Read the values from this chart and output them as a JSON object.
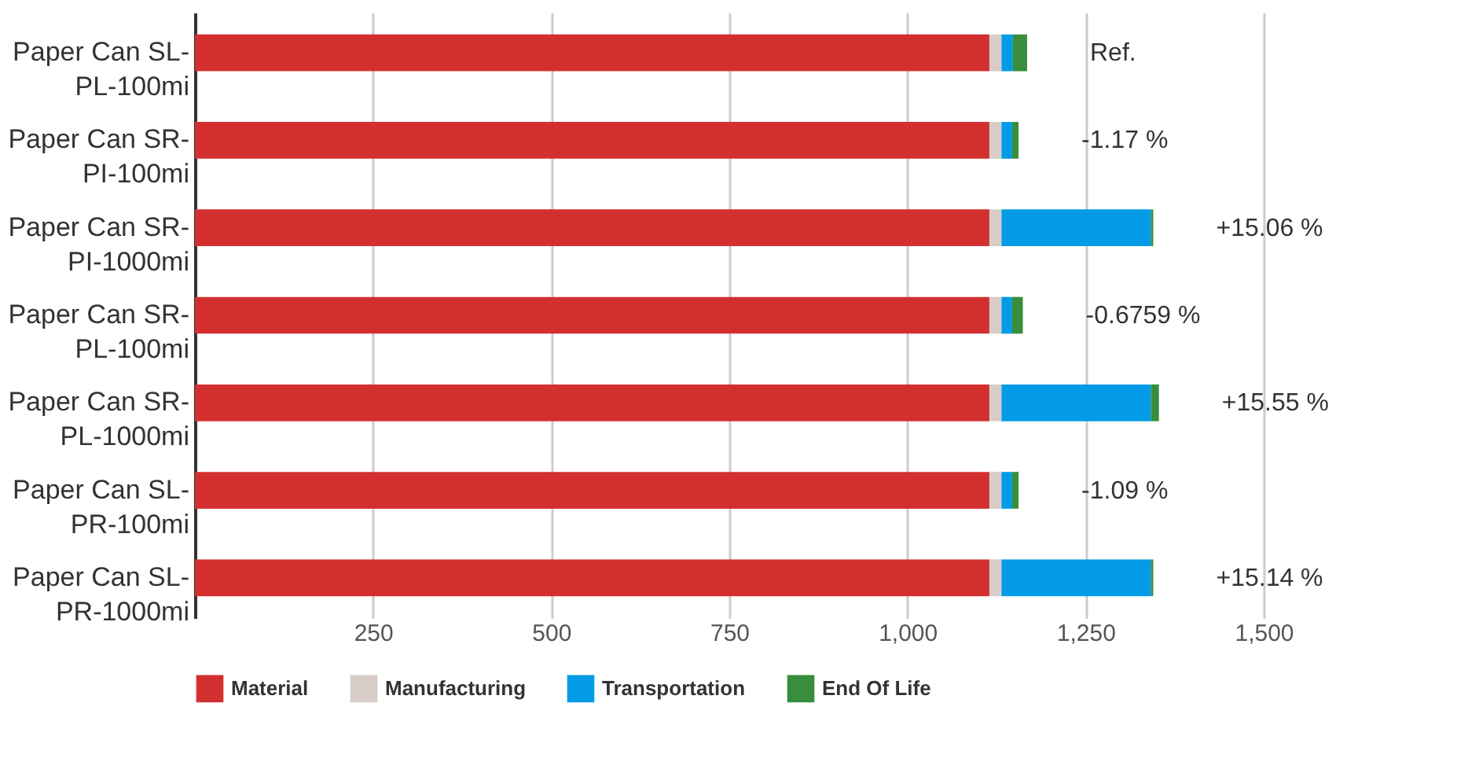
{
  "chart_data": {
    "type": "bar",
    "orientation": "horizontal",
    "stacked": true,
    "categories": [
      "Paper Can SL-PL-100mi",
      "Paper Can SR-PI-100mi",
      "Paper Can SR-PI-1000mi",
      "Paper Can SR-PL-100mi",
      "Paper Can SR-PL-1000mi",
      "Paper Can SL-PR-100mi",
      "Paper Can SL-PR-1000mi"
    ],
    "series": [
      {
        "name": "Material",
        "color": "#d32f2f",
        "values": [
          1115,
          1115,
          1115,
          1115,
          1115,
          1115,
          1115
        ]
      },
      {
        "name": "Manufacturing",
        "color": "#d7ccc8",
        "values": [
          17,
          17,
          17,
          17,
          17,
          17,
          17
        ]
      },
      {
        "name": "Transportation",
        "color": "#039be5",
        "values": [
          16,
          15,
          210,
          15,
          210,
          15,
          210
        ]
      },
      {
        "name": "End Of Life",
        "color": "#388e3c",
        "values": [
          20,
          9,
          3,
          15,
          11,
          9,
          3
        ]
      }
    ],
    "xlim": [
      0,
      1500
    ],
    "xticks": [
      {
        "value": 250,
        "label": "250"
      },
      {
        "value": 500,
        "label": "500"
      },
      {
        "value": 750,
        "label": "750"
      },
      {
        "value": 1000,
        "label": "1,000"
      },
      {
        "value": 1250,
        "label": "1,250"
      },
      {
        "value": 1500,
        "label": "1,500"
      }
    ],
    "grid": "x",
    "legend": "bottom",
    "annotations": [
      "Ref.",
      "-1.17 %",
      "+15.06 %",
      "-0.6759 %",
      "+15.55 %",
      "-1.09 %",
      "+15.14 %"
    ]
  }
}
